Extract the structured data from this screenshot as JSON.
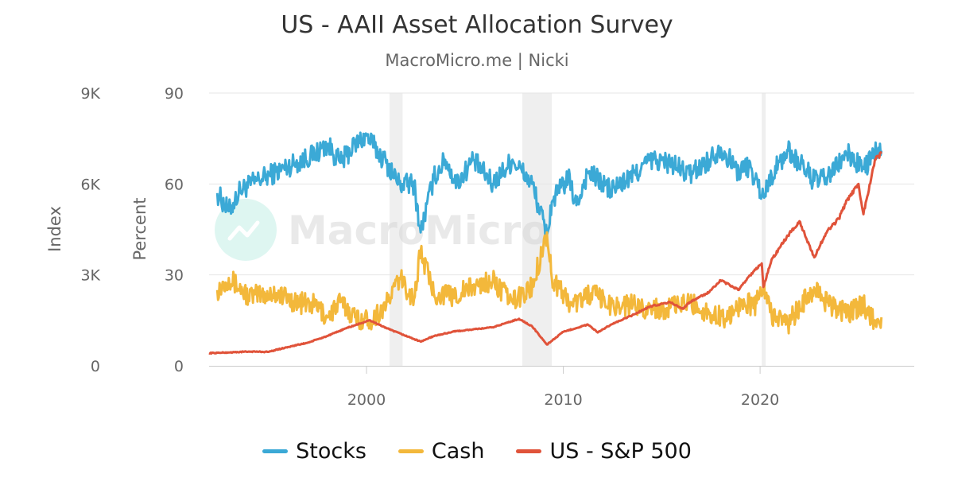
{
  "header": {
    "title": "US - AAII Asset Allocation Survey",
    "subtitle": "MacroMicro.me | Nicki"
  },
  "watermark": {
    "text": "MacroMicro",
    "icon": "macromicro-logo-icon"
  },
  "colors": {
    "stocks": "#3ba9d6",
    "cash": "#f3b83b",
    "sp500": "#e0533a",
    "grid": "#e6e6e6",
    "recession": "#efefef",
    "axis_text": "#666666"
  },
  "chart_data": {
    "type": "line",
    "title": "US - AAII Asset Allocation Survey",
    "subtitle": "MacroMicro.me | Nicki",
    "x_axis": {
      "type": "date",
      "range": [
        "1992-01",
        "2026-12"
      ],
      "tick_labels": [
        "2000",
        "2010",
        "2020"
      ]
    },
    "y_axis_left_outer": {
      "label": "Index",
      "range": [
        0,
        9000
      ],
      "tick_labels": [
        "0",
        "3K",
        "6K",
        "9K"
      ]
    },
    "y_axis_left_inner": {
      "label": "Percent",
      "range": [
        0,
        90
      ],
      "tick_labels": [
        "0",
        "30",
        "60",
        "90"
      ]
    },
    "grid": true,
    "legend_position": "bottom",
    "recession_bands": [
      {
        "start": "2001-03",
        "end": "2001-11"
      },
      {
        "start": "2007-12",
        "end": "2009-06"
      },
      {
        "start": "2020-02",
        "end": "2020-04"
      }
    ],
    "series": [
      {
        "name": "Stocks",
        "axis": "Percent",
        "color": "#3ba9d6",
        "points": [
          [
            "1992-06",
            57
          ],
          [
            "1993-01",
            51
          ],
          [
            "1993-08",
            58
          ],
          [
            "1994-06",
            61
          ],
          [
            "1995-06",
            64
          ],
          [
            "1996-06",
            67
          ],
          [
            "1997-06",
            70
          ],
          [
            "1998-01",
            73
          ],
          [
            "1998-09",
            67
          ],
          [
            "1999-06",
            73
          ],
          [
            "2000-01",
            76
          ],
          [
            "2000-06",
            72
          ],
          [
            "2001-01",
            67
          ],
          [
            "2001-09",
            60
          ],
          [
            "2002-06",
            60
          ],
          [
            "2002-10",
            44
          ],
          [
            "2003-06",
            62
          ],
          [
            "2004-01",
            68
          ],
          [
            "2004-08",
            60
          ],
          [
            "2005-06",
            68
          ],
          [
            "2006-06",
            60
          ],
          [
            "2007-06",
            68
          ],
          [
            "2008-06",
            60
          ],
          [
            "2009-03",
            43
          ],
          [
            "2009-06",
            54
          ],
          [
            "2010-04",
            62
          ],
          [
            "2010-09",
            53
          ],
          [
            "2011-04",
            64
          ],
          [
            "2012-06",
            58
          ],
          [
            "2013-06",
            62
          ],
          [
            "2014-06",
            68
          ],
          [
            "2015-06",
            67
          ],
          [
            "2016-06",
            63
          ],
          [
            "2017-06",
            68
          ],
          [
            "2018-01",
            72
          ],
          [
            "2018-12",
            64
          ],
          [
            "2019-06",
            66
          ],
          [
            "2020-03",
            56
          ],
          [
            "2020-08",
            63
          ],
          [
            "2021-06",
            71
          ],
          [
            "2022-06",
            64
          ],
          [
            "2022-10",
            61
          ],
          [
            "2023-06",
            62
          ],
          [
            "2024-06",
            70
          ],
          [
            "2025-04",
            65
          ],
          [
            "2025-11",
            70
          ],
          [
            "2026-03",
            71
          ]
        ]
      },
      {
        "name": "Cash",
        "axis": "Percent",
        "color": "#f3b83b",
        "points": [
          [
            "1992-06",
            25
          ],
          [
            "1993-01",
            29
          ],
          [
            "1994-01",
            23
          ],
          [
            "1995-06",
            24
          ],
          [
            "1996-06",
            21
          ],
          [
            "1997-06",
            20
          ],
          [
            "1998-01",
            16
          ],
          [
            "1998-09",
            21
          ],
          [
            "1999-06",
            16
          ],
          [
            "2000-03",
            15
          ],
          [
            "2001-01",
            20
          ],
          [
            "2001-09",
            29
          ],
          [
            "2002-06",
            22
          ],
          [
            "2002-10",
            38
          ],
          [
            "2003-06",
            24
          ],
          [
            "2004-06",
            23
          ],
          [
            "2005-06",
            26
          ],
          [
            "2006-06",
            28
          ],
          [
            "2007-06",
            21
          ],
          [
            "2008-06",
            26
          ],
          [
            "2009-03",
            44
          ],
          [
            "2009-06",
            29
          ],
          [
            "2010-06",
            20
          ],
          [
            "2011-06",
            24
          ],
          [
            "2012-06",
            20
          ],
          [
            "2013-06",
            20
          ],
          [
            "2014-06",
            19
          ],
          [
            "2015-06",
            19
          ],
          [
            "2016-06",
            21
          ],
          [
            "2017-06",
            17
          ],
          [
            "2018-06",
            16
          ],
          [
            "2019-03",
            22
          ],
          [
            "2019-09",
            19
          ],
          [
            "2020-03",
            26
          ],
          [
            "2020-08",
            17
          ],
          [
            "2021-06",
            14
          ],
          [
            "2022-09",
            25
          ],
          [
            "2023-06",
            21
          ],
          [
            "2024-06",
            17
          ],
          [
            "2025-04",
            20
          ],
          [
            "2025-11",
            15
          ],
          [
            "2026-03",
            16
          ]
        ]
      },
      {
        "name": "US - S&P 500",
        "axis": "Index",
        "color": "#e0533a",
        "points": [
          [
            "1992-01",
            420
          ],
          [
            "1993-01",
            440
          ],
          [
            "1994-01",
            470
          ],
          [
            "1995-01",
            460
          ],
          [
            "1996-01",
            620
          ],
          [
            "1997-01",
            760
          ],
          [
            "1998-01",
            980
          ],
          [
            "1999-01",
            1250
          ],
          [
            "2000-03",
            1500
          ],
          [
            "2001-03",
            1200
          ],
          [
            "2002-10",
            800
          ],
          [
            "2003-06",
            980
          ],
          [
            "2004-06",
            1130
          ],
          [
            "2005-06",
            1200
          ],
          [
            "2006-06",
            1270
          ],
          [
            "2007-10",
            1550
          ],
          [
            "2008-06",
            1300
          ],
          [
            "2009-03",
            700
          ],
          [
            "2010-01",
            1120
          ],
          [
            "2011-04",
            1360
          ],
          [
            "2011-10",
            1100
          ],
          [
            "2012-06",
            1360
          ],
          [
            "2013-06",
            1640
          ],
          [
            "2014-06",
            1960
          ],
          [
            "2015-06",
            2100
          ],
          [
            "2016-02",
            1880
          ],
          [
            "2016-06",
            2100
          ],
          [
            "2017-06",
            2430
          ],
          [
            "2018-01",
            2820
          ],
          [
            "2018-12",
            2500
          ],
          [
            "2019-06",
            2940
          ],
          [
            "2020-02",
            3380
          ],
          [
            "2020-03",
            2600
          ],
          [
            "2020-08",
            3500
          ],
          [
            "2021-06",
            4300
          ],
          [
            "2022-01",
            4770
          ],
          [
            "2022-10",
            3580
          ],
          [
            "2023-06",
            4450
          ],
          [
            "2024-01",
            4850
          ],
          [
            "2024-06",
            5470
          ],
          [
            "2025-01",
            6000
          ],
          [
            "2025-04",
            5000
          ],
          [
            "2025-11",
            6800
          ],
          [
            "2026-03",
            7000
          ]
        ]
      }
    ]
  },
  "legend": [
    {
      "label": "Stocks",
      "color": "#3ba9d6"
    },
    {
      "label": "Cash",
      "color": "#f3b83b"
    },
    {
      "label": "US - S&P 500",
      "color": "#e0533a"
    }
  ]
}
